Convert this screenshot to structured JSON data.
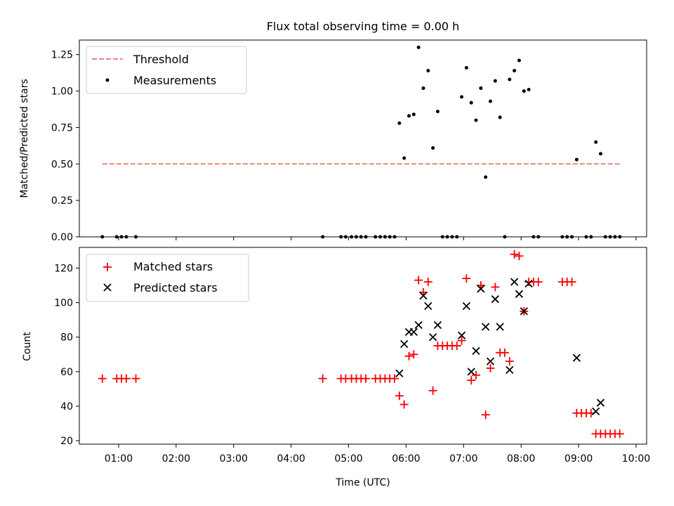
{
  "chart_data": [
    {
      "type": "scatter",
      "title": "Flux total observing time = 0.00 h",
      "xlabel": "",
      "ylabel": "Matched/Predicted stars",
      "xlim": [
        "00:19",
        "10:11"
      ],
      "ylim": [
        0,
        1.35
      ],
      "yticks": [
        "0.00",
        "0.25",
        "0.50",
        "0.75",
        "1.00",
        "1.25"
      ],
      "legend_position": "upper-left",
      "grid": false,
      "threshold": {
        "name": "Threshold",
        "value": 0.5,
        "x_range": [
          "00:43",
          "09:45"
        ],
        "color": "#f08080",
        "style": "dashed"
      },
      "series": [
        {
          "name": "Measurements",
          "color": "#000000",
          "marker": "dot",
          "points": [
            [
              "00:43",
              0.0
            ],
            [
              "00:58",
              0.0
            ],
            [
              "01:03",
              0.0
            ],
            [
              "01:08",
              0.0
            ],
            [
              "01:18",
              0.0
            ],
            [
              "04:33",
              0.0
            ],
            [
              "04:52",
              0.0
            ],
            [
              "04:57",
              0.0
            ],
            [
              "05:03",
              0.0
            ],
            [
              "05:08",
              0.0
            ],
            [
              "05:13",
              0.0
            ],
            [
              "05:18",
              0.0
            ],
            [
              "05:28",
              0.0
            ],
            [
              "05:33",
              0.0
            ],
            [
              "05:38",
              0.0
            ],
            [
              "05:43",
              0.0
            ],
            [
              "05:48",
              0.0
            ],
            [
              "05:53",
              0.78
            ],
            [
              "05:58",
              0.54
            ],
            [
              "06:03",
              0.83
            ],
            [
              "06:08",
              0.84
            ],
            [
              "06:13",
              1.3
            ],
            [
              "06:18",
              1.02
            ],
            [
              "06:23",
              1.14
            ],
            [
              "06:28",
              0.61
            ],
            [
              "06:33",
              0.86
            ],
            [
              "06:38",
              0.0
            ],
            [
              "06:43",
              0.0
            ],
            [
              "06:48",
              0.0
            ],
            [
              "06:53",
              0.0
            ],
            [
              "06:58",
              0.96
            ],
            [
              "07:03",
              1.16
            ],
            [
              "07:08",
              0.92
            ],
            [
              "07:13",
              0.8
            ],
            [
              "07:18",
              1.02
            ],
            [
              "07:23",
              0.41
            ],
            [
              "07:28",
              0.93
            ],
            [
              "07:33",
              1.07
            ],
            [
              "07:38",
              0.82
            ],
            [
              "07:43",
              0.0
            ],
            [
              "07:48",
              1.08
            ],
            [
              "07:53",
              1.14
            ],
            [
              "07:58",
              1.21
            ],
            [
              "08:03",
              1.0
            ],
            [
              "08:08",
              1.01
            ],
            [
              "08:13",
              0.0
            ],
            [
              "08:18",
              0.0
            ],
            [
              "08:43",
              0.0
            ],
            [
              "08:48",
              0.0
            ],
            [
              "08:53",
              0.0
            ],
            [
              "08:58",
              0.53
            ],
            [
              "09:08",
              0.0
            ],
            [
              "09:13",
              0.0
            ],
            [
              "09:18",
              0.65
            ],
            [
              "09:23",
              0.57
            ],
            [
              "09:28",
              0.0
            ],
            [
              "09:33",
              0.0
            ],
            [
              "09:38",
              0.0
            ],
            [
              "09:43",
              0.0
            ]
          ]
        }
      ]
    },
    {
      "type": "scatter",
      "title": "",
      "xlabel": "Time (UTC)",
      "ylabel": "Count",
      "xlim": [
        "00:19",
        "10:11"
      ],
      "ylim": [
        18,
        132
      ],
      "yticks": [
        "20",
        "40",
        "60",
        "80",
        "100",
        "120"
      ],
      "xticks": [
        "01:00",
        "02:00",
        "03:00",
        "04:00",
        "05:00",
        "06:00",
        "07:00",
        "08:00",
        "09:00",
        "10:00"
      ],
      "legend_position": "upper-left",
      "grid": false,
      "series": [
        {
          "name": "Matched stars",
          "color": "#ff0000",
          "marker": "plus",
          "points": [
            [
              "00:43",
              56
            ],
            [
              "00:58",
              56
            ],
            [
              "01:03",
              56
            ],
            [
              "01:08",
              56
            ],
            [
              "01:18",
              56
            ],
            [
              "04:33",
              56
            ],
            [
              "04:52",
              56
            ],
            [
              "04:57",
              56
            ],
            [
              "05:03",
              56
            ],
            [
              "05:08",
              56
            ],
            [
              "05:13",
              56
            ],
            [
              "05:18",
              56
            ],
            [
              "05:28",
              56
            ],
            [
              "05:33",
              56
            ],
            [
              "05:38",
              56
            ],
            [
              "05:43",
              56
            ],
            [
              "05:48",
              56
            ],
            [
              "05:53",
              46
            ],
            [
              "05:58",
              41
            ],
            [
              "06:03",
              69
            ],
            [
              "06:08",
              70
            ],
            [
              "06:13",
              113
            ],
            [
              "06:18",
              106
            ],
            [
              "06:23",
              112
            ],
            [
              "06:28",
              49
            ],
            [
              "06:33",
              75
            ],
            [
              "06:38",
              75
            ],
            [
              "06:43",
              75
            ],
            [
              "06:48",
              75
            ],
            [
              "06:53",
              75
            ],
            [
              "06:58",
              78
            ],
            [
              "07:03",
              114
            ],
            [
              "07:08",
              55
            ],
            [
              "07:13",
              58
            ],
            [
              "07:18",
              110
            ],
            [
              "07:23",
              35
            ],
            [
              "07:28",
              62
            ],
            [
              "07:33",
              109
            ],
            [
              "07:38",
              71
            ],
            [
              "07:43",
              71
            ],
            [
              "07:48",
              66
            ],
            [
              "07:53",
              128
            ],
            [
              "07:58",
              127
            ],
            [
              "08:03",
              95
            ],
            [
              "08:08",
              112
            ],
            [
              "08:13",
              112
            ],
            [
              "08:18",
              112
            ],
            [
              "08:43",
              112
            ],
            [
              "08:48",
              112
            ],
            [
              "08:53",
              112
            ],
            [
              "08:58",
              36
            ],
            [
              "09:03",
              36
            ],
            [
              "09:08",
              36
            ],
            [
              "09:13",
              36
            ],
            [
              "09:18",
              24
            ],
            [
              "09:23",
              24
            ],
            [
              "09:28",
              24
            ],
            [
              "09:33",
              24
            ],
            [
              "09:38",
              24
            ],
            [
              "09:43",
              24
            ]
          ]
        },
        {
          "name": "Predicted stars",
          "color": "#000000",
          "marker": "x",
          "points": [
            [
              "05:53",
              59
            ],
            [
              "05:58",
              76
            ],
            [
              "06:03",
              83
            ],
            [
              "06:08",
              83
            ],
            [
              "06:13",
              87
            ],
            [
              "06:18",
              104
            ],
            [
              "06:23",
              98
            ],
            [
              "06:28",
              80
            ],
            [
              "06:33",
              87
            ],
            [
              "06:58",
              81
            ],
            [
              "07:03",
              98
            ],
            [
              "07:08",
              60
            ],
            [
              "07:13",
              72
            ],
            [
              "07:18",
              108
            ],
            [
              "07:23",
              86
            ],
            [
              "07:28",
              66
            ],
            [
              "07:33",
              102
            ],
            [
              "07:38",
              86
            ],
            [
              "07:48",
              61
            ],
            [
              "07:53",
              112
            ],
            [
              "07:58",
              105
            ],
            [
              "08:03",
              95
            ],
            [
              "08:08",
              111
            ],
            [
              "08:58",
              68
            ],
            [
              "09:18",
              37
            ],
            [
              "09:23",
              42
            ]
          ]
        }
      ]
    }
  ]
}
